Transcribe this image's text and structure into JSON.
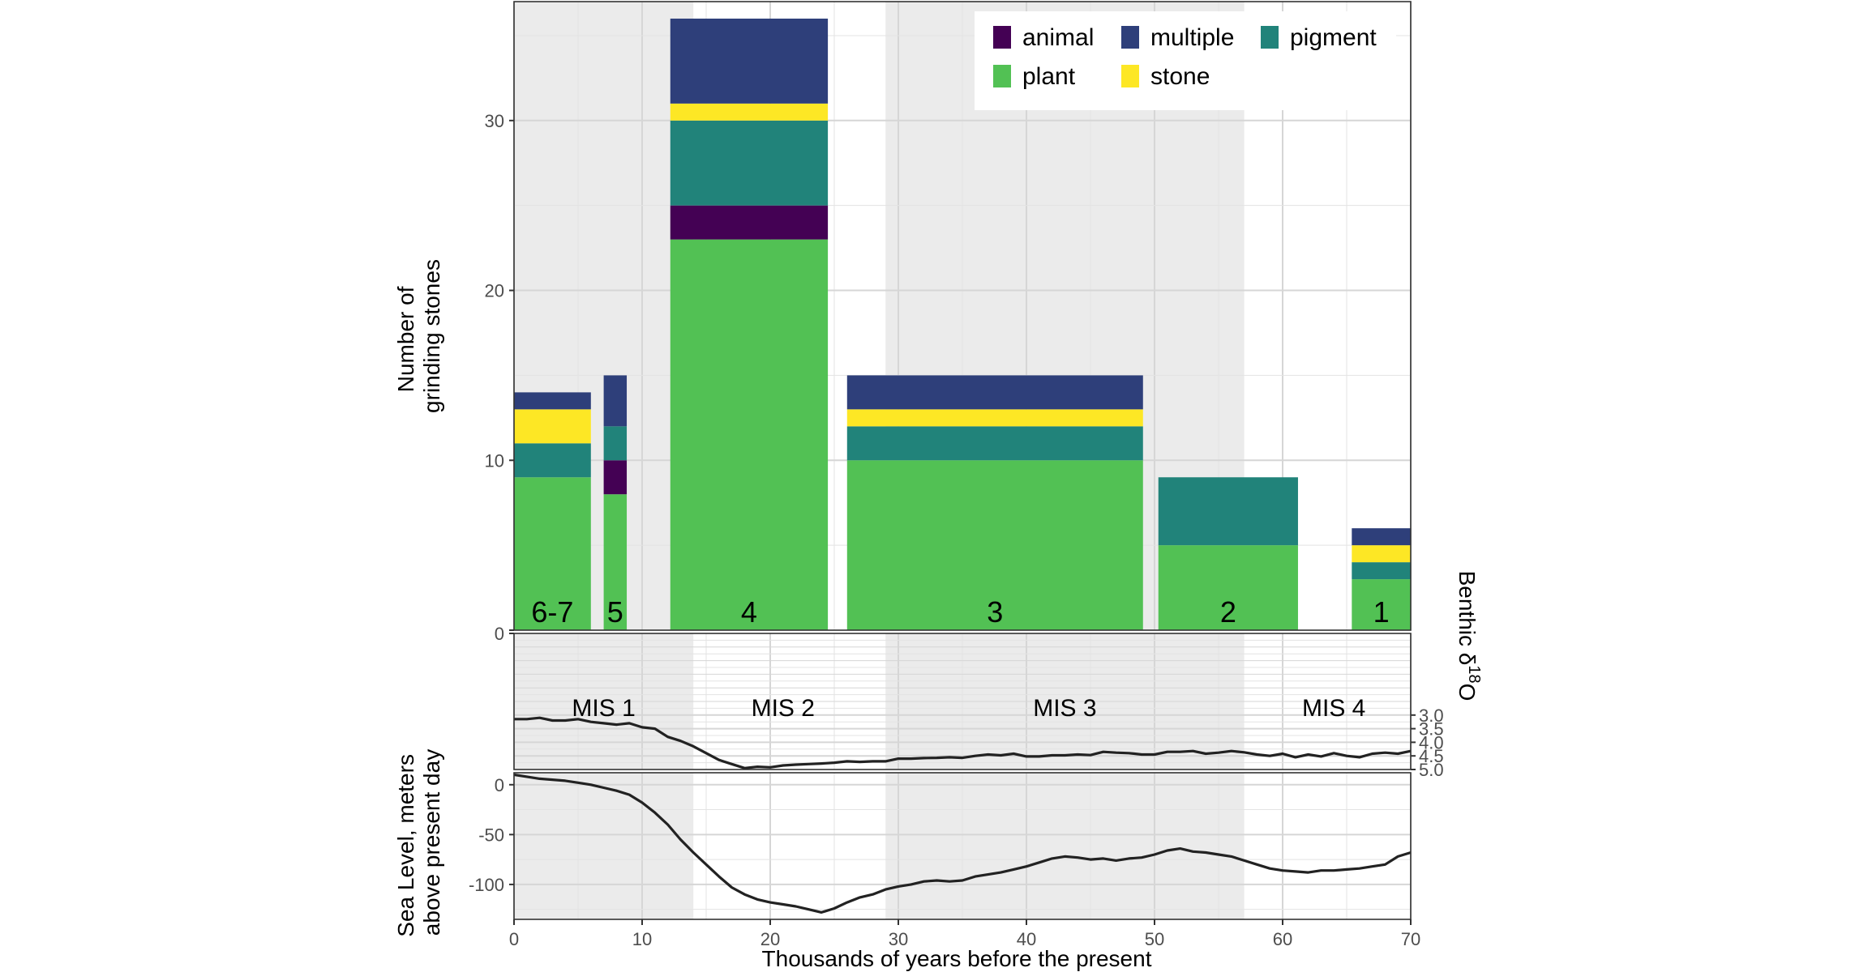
{
  "chart_data": {
    "type": "bar",
    "x_axis": {
      "label": "Thousands of years before the present",
      "range": [
        0,
        70
      ],
      "ticks": [
        0,
        10,
        20,
        30,
        40,
        50,
        60,
        70
      ]
    },
    "shaded_intervals": [
      [
        0,
        14
      ],
      [
        29,
        57
      ]
    ],
    "legend": {
      "position": "top-right",
      "entries": [
        {
          "name": "animal",
          "color": "#440154"
        },
        {
          "name": "multiple",
          "color": "#2E3F7A"
        },
        {
          "name": "pigment",
          "color": "#21837A"
        },
        {
          "name": "plant",
          "color": "#52C154"
        },
        {
          "name": "stone",
          "color": "#FDE725"
        }
      ]
    },
    "panels": [
      {
        "name": "grinding-stones",
        "type": "stacked-bar",
        "ylabel": [
          "Number of",
          "grinding stones"
        ],
        "ylim": [
          0,
          37
        ],
        "yticks": [
          10,
          20,
          30
        ],
        "stack_order": [
          "plant",
          "animal",
          "pigment",
          "stone",
          "multiple"
        ],
        "bars": [
          {
            "label": "6-7",
            "x_start": 0,
            "x_end": 6,
            "plant": 9,
            "animal": 0,
            "pigment": 2,
            "stone": 2,
            "multiple": 1
          },
          {
            "label": "5",
            "x_start": 7,
            "x_end": 8.8,
            "plant": 8,
            "animal": 2,
            "pigment": 2,
            "stone": 0,
            "multiple": 3
          },
          {
            "label": "4",
            "x_start": 12.2,
            "x_end": 24.5,
            "plant": 23,
            "animal": 2,
            "pigment": 5,
            "stone": 1,
            "multiple": 5
          },
          {
            "label": "3",
            "x_start": 26,
            "x_end": 49.1,
            "plant": 10,
            "animal": 0,
            "pigment": 2,
            "stone": 1,
            "multiple": 2
          },
          {
            "label": "2",
            "x_start": 50.3,
            "x_end": 61.2,
            "plant": 5,
            "animal": 0,
            "pigment": 4,
            "stone": 0,
            "multiple": 0
          },
          {
            "label": "1",
            "x_start": 65.4,
            "x_end": 70,
            "plant": 3,
            "animal": 0,
            "pigment": 1,
            "stone": 1,
            "multiple": 1
          }
        ]
      },
      {
        "name": "benthic-d18O",
        "type": "line",
        "ylabel_prefix": "Benthic δ",
        "ylabel_sup": "18",
        "ylabel_suffix": "O",
        "ylim": [
          0,
          5.0
        ],
        "left_tick": "0",
        "right_ticks": [
          "3.0",
          "3.5",
          "4.0",
          "4.5",
          "5.0"
        ],
        "stages": [
          {
            "label": "MIS 1",
            "x": 7
          },
          {
            "label": "MIS 2",
            "x": 21
          },
          {
            "label": "MIS 3",
            "x": 43
          },
          {
            "label": "MIS 4",
            "x": 64
          }
        ],
        "x": [
          0,
          1,
          2,
          3,
          4,
          5,
          6,
          7,
          8,
          9,
          10,
          11,
          12,
          13,
          14,
          15,
          16,
          17,
          18,
          19,
          20,
          21,
          22,
          23,
          24,
          25,
          26,
          27,
          28,
          29,
          30,
          31,
          32,
          33,
          34,
          35,
          36,
          37,
          38,
          39,
          40,
          41,
          42,
          43,
          44,
          45,
          46,
          47,
          48,
          49,
          50,
          51,
          52,
          53,
          54,
          55,
          56,
          57,
          58,
          59,
          60,
          61,
          62,
          63,
          64,
          65,
          66,
          67,
          68,
          69,
          70
        ],
        "y": [
          3.15,
          3.15,
          3.1,
          3.2,
          3.2,
          3.15,
          3.25,
          3.3,
          3.35,
          3.3,
          3.45,
          3.5,
          3.8,
          3.95,
          4.15,
          4.4,
          4.65,
          4.8,
          4.95,
          4.9,
          4.92,
          4.85,
          4.82,
          4.8,
          4.78,
          4.75,
          4.7,
          4.72,
          4.7,
          4.7,
          4.6,
          4.6,
          4.58,
          4.57,
          4.55,
          4.57,
          4.5,
          4.45,
          4.48,
          4.42,
          4.52,
          4.52,
          4.48,
          4.48,
          4.45,
          4.47,
          4.35,
          4.38,
          4.4,
          4.45,
          4.45,
          4.35,
          4.35,
          4.32,
          4.42,
          4.38,
          4.32,
          4.37,
          4.45,
          4.5,
          4.42,
          4.55,
          4.45,
          4.52,
          4.4,
          4.5,
          4.55,
          4.42,
          4.38,
          4.42,
          4.32
        ]
      },
      {
        "name": "sea-level",
        "type": "line",
        "ylabel": [
          "Sea Level, meters",
          "above present day"
        ],
        "ylim": [
          -135,
          12
        ],
        "yticks": [
          0,
          -50,
          -100
        ],
        "x": [
          0,
          1,
          2,
          3,
          4,
          5,
          6,
          7,
          8,
          9,
          10,
          11,
          12,
          13,
          14,
          15,
          16,
          17,
          18,
          19,
          20,
          21,
          22,
          23,
          24,
          25,
          26,
          27,
          28,
          29,
          30,
          31,
          32,
          33,
          34,
          35,
          36,
          37,
          38,
          39,
          40,
          41,
          42,
          43,
          44,
          45,
          46,
          47,
          48,
          49,
          50,
          51,
          52,
          53,
          54,
          55,
          56,
          57,
          58,
          59,
          60,
          61,
          62,
          63,
          64,
          65,
          66,
          67,
          68,
          69,
          70
        ],
        "y": [
          10,
          8,
          6,
          5,
          4,
          2,
          0,
          -3,
          -6,
          -10,
          -18,
          -28,
          -40,
          -55,
          -68,
          -80,
          -92,
          -103,
          -110,
          -115,
          -118,
          -120,
          -122,
          -125,
          -128,
          -124,
          -118,
          -113,
          -110,
          -105,
          -102,
          -100,
          -97,
          -96,
          -97,
          -96,
          -92,
          -90,
          -88,
          -85,
          -82,
          -78,
          -74,
          -72,
          -73,
          -75,
          -74,
          -76,
          -74,
          -73,
          -70,
          -66,
          -64,
          -67,
          -68,
          -70,
          -72,
          -76,
          -80,
          -84,
          -86,
          -87,
          -88,
          -86,
          -86,
          -85,
          -84,
          -82,
          -80,
          -72,
          -68
        ]
      }
    ]
  }
}
